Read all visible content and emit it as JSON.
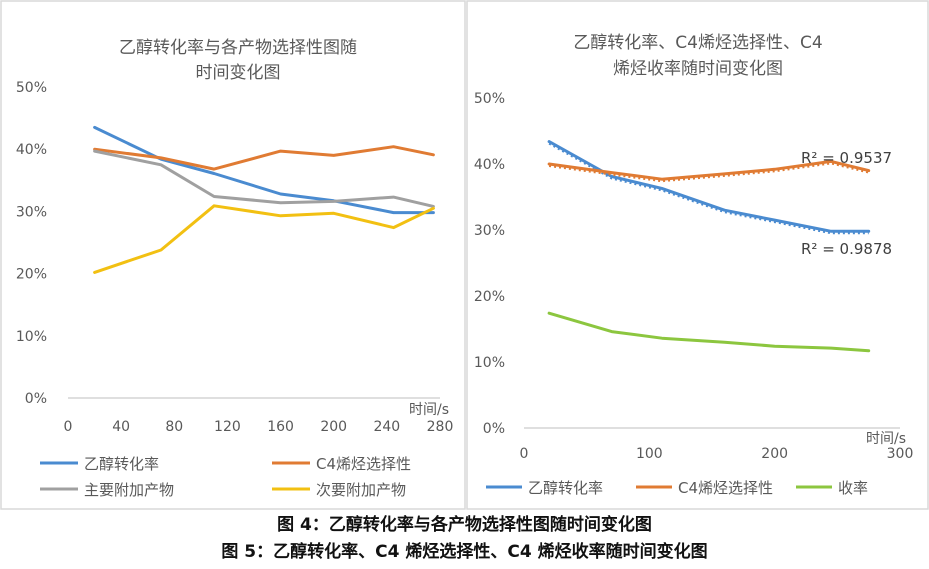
{
  "chart_data": [
    {
      "type": "line",
      "title": "乙醇转化率与各产物选择性图随时间变化图",
      "title_lines": [
        "乙醇转化率与各产物选择性图随",
        "时间变化图"
      ],
      "xlabel": "时间/s",
      "ylabel": "",
      "xlim": [
        0,
        280
      ],
      "ylim": [
        0,
        0.5
      ],
      "x_ticks": [
        0,
        40,
        80,
        120,
        160,
        200,
        240,
        280
      ],
      "y_ticks": [
        "0%",
        "10%",
        "20%",
        "30%",
        "40%",
        "50%"
      ],
      "grid": false,
      "legend": "bottom",
      "series": [
        {
          "name": "乙醇转化率",
          "color": "#4a8bd0",
          "x": [
            20,
            70,
            110,
            160,
            200,
            245,
            275
          ],
          "y": [
            0.435,
            0.384,
            0.361,
            0.328,
            0.317,
            0.298,
            0.298
          ]
        },
        {
          "name": "C4烯烃选择性",
          "color": "#e07b33",
          "x": [
            20,
            70,
            110,
            160,
            200,
            245,
            275
          ],
          "y": [
            0.4,
            0.386,
            0.368,
            0.397,
            0.39,
            0.404,
            0.391
          ]
        },
        {
          "name": "主要附加产物",
          "color": "#a0a0a0",
          "x": [
            20,
            70,
            110,
            160,
            200,
            245,
            275
          ],
          "y": [
            0.397,
            0.375,
            0.324,
            0.314,
            0.316,
            0.323,
            0.308
          ]
        },
        {
          "name": "次要附加产物",
          "color": "#f2c012",
          "x": [
            20,
            70,
            110,
            160,
            200,
            245,
            275
          ],
          "y": [
            0.202,
            0.238,
            0.309,
            0.293,
            0.297,
            0.274,
            0.305
          ]
        }
      ]
    },
    {
      "type": "line",
      "title": "乙醇转化率、C4烯烃选择性、C4烯烃收率随时间变化图",
      "title_lines": [
        "乙醇转化率、C4烯烃选择性、C4",
        "烯烃收率随时间变化图"
      ],
      "xlabel": "时间/s",
      "ylabel": "",
      "xlim": [
        0,
        300
      ],
      "ylim": [
        0,
        0.5
      ],
      "x_ticks": [
        0,
        100,
        200,
        300
      ],
      "y_ticks": [
        "0%",
        "10%",
        "20%",
        "30%",
        "40%",
        "50%"
      ],
      "grid": false,
      "legend": "bottom",
      "annotations": [
        "R² = 0.9537",
        "R² = 0.9878"
      ],
      "series": [
        {
          "name": "乙醇转化率",
          "color": "#4a8bd0",
          "x": [
            20,
            70,
            110,
            160,
            200,
            245,
            275
          ],
          "y": [
            0.434,
            0.381,
            0.363,
            0.33,
            0.315,
            0.298,
            0.298
          ]
        },
        {
          "name": "C4烯烃选择性",
          "color": "#e07b33",
          "x": [
            20,
            70,
            110,
            160,
            200,
            245,
            275
          ],
          "y": [
            0.4,
            0.387,
            0.377,
            0.385,
            0.392,
            0.404,
            0.39
          ]
        },
        {
          "name": "收率",
          "color": "#8cc63f",
          "x": [
            20,
            70,
            110,
            160,
            200,
            245,
            275
          ],
          "y": [
            0.174,
            0.146,
            0.136,
            0.13,
            0.124,
            0.121,
            0.117
          ]
        }
      ]
    }
  ],
  "captions": {
    "fig4": "图 4：乙醇转化率与各产物选择性图随时间变化图",
    "fig5": "图 5：乙醇转化率、C4 烯烃选择性、C4 烯烃收率随时间变化图"
  }
}
